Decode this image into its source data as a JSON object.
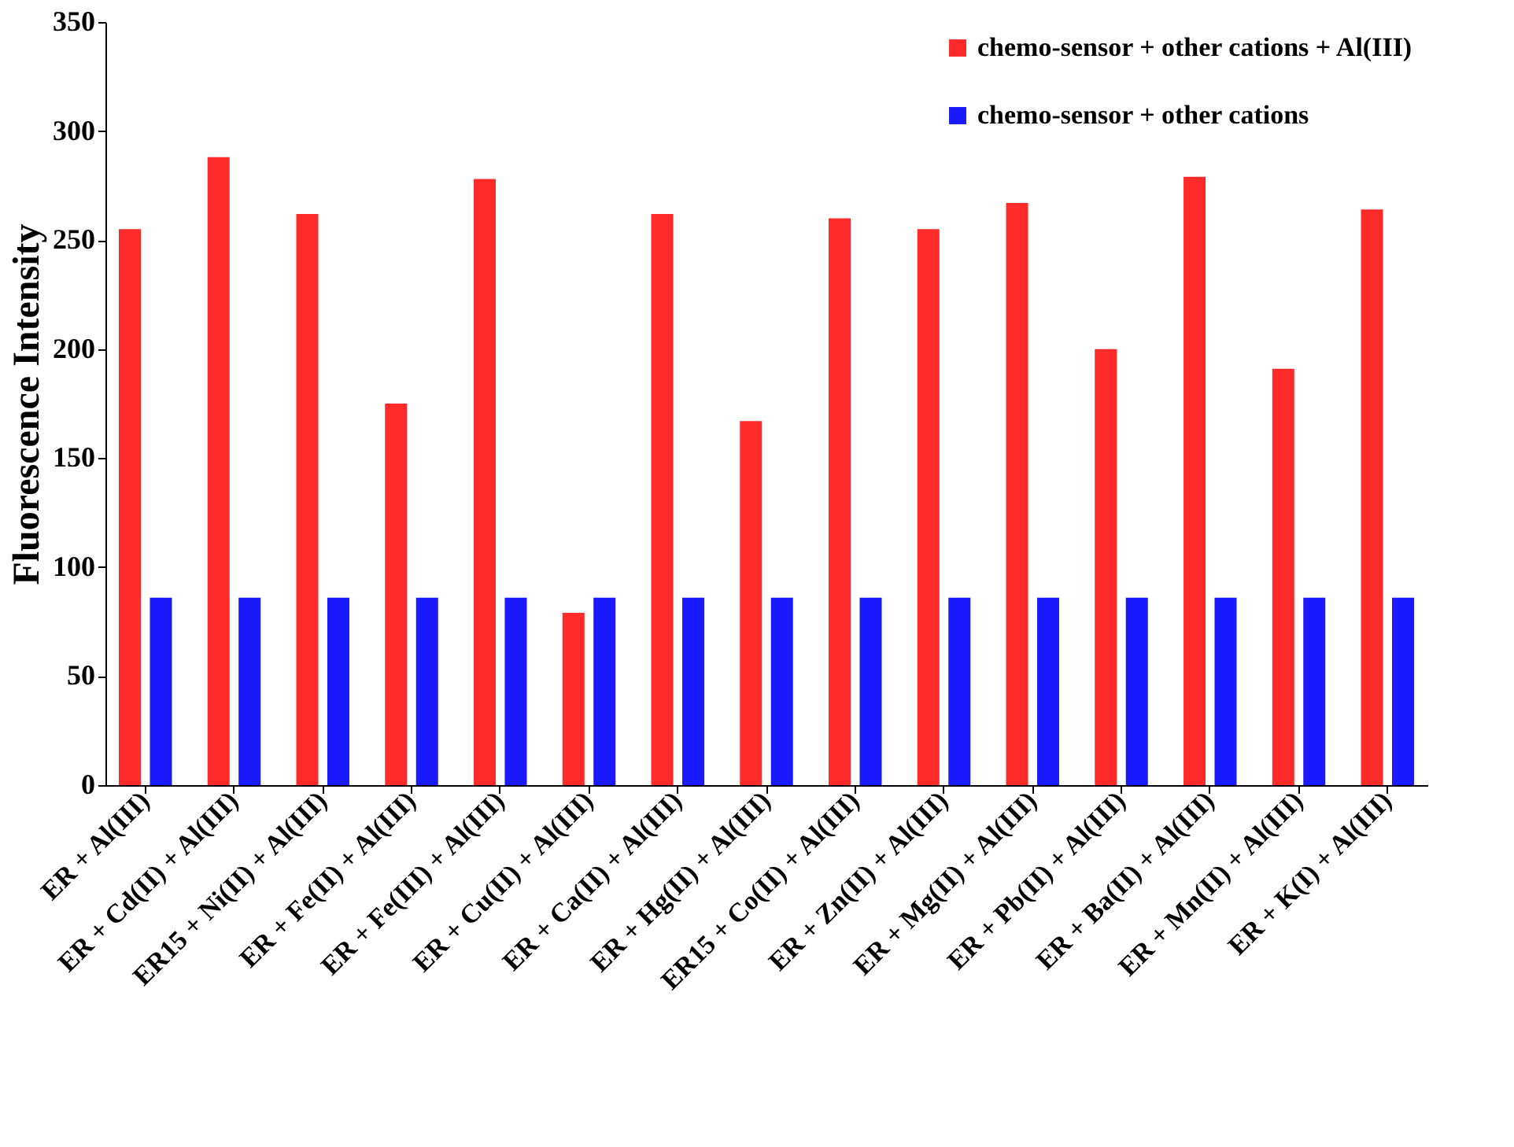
{
  "chart_data": {
    "type": "bar",
    "ylabel": "Fluorescence Intensity",
    "categories": [
      "ER + Al(III)",
      "ER + Cd(II) + Al(III)",
      "ER15 + Ni(II) + Al(III)",
      "ER + Fe(II) + Al(III)",
      "ER + Fe(III) + Al(III)",
      "ER + Cu(II) + Al(III)",
      "ER + Ca(II) + Al(III)",
      "ER + Hg(II) + Al(III)",
      "ER15 + Co(II) + Al(III)",
      "ER + Zn(II) + Al(III)",
      "ER + Mg(II) + Al(III)",
      "ER + Pb(II) + Al(III)",
      "ER + Ba(II) + Al(III)",
      "ER + Mn(II) + Al(III)",
      "ER + K(I) + Al(III)"
    ],
    "series": [
      {
        "name": "chemo-sensor + other cations + Al(III)",
        "color": "#ff2a2a",
        "values": [
          255,
          288,
          262,
          175,
          278,
          79,
          262,
          167,
          260,
          255,
          267,
          200,
          279,
          191,
          264
        ]
      },
      {
        "name": "chemo-sensor + other cations",
        "color": "#1a1aff",
        "values": [
          86,
          86,
          86,
          86,
          86,
          86,
          86,
          86,
          86,
          86,
          86,
          86,
          86,
          86,
          86
        ]
      }
    ],
    "ylim": [
      0,
      350
    ],
    "yticks": [
      0,
      50,
      100,
      150,
      200,
      250,
      300,
      350
    ],
    "grid": false,
    "legend": "top right"
  }
}
